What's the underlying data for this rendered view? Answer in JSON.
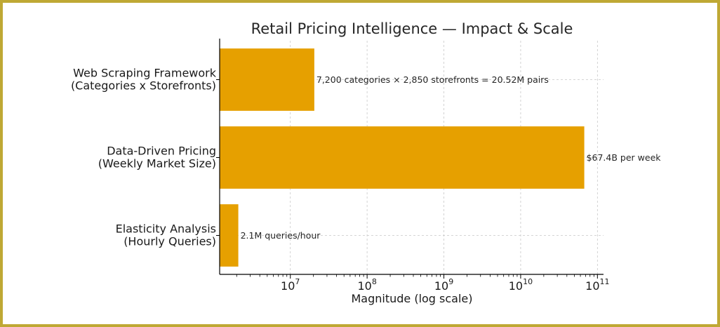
{
  "chart_data": {
    "type": "bar",
    "orientation": "horizontal",
    "title": "Retail Pricing Intelligence — Impact & Scale",
    "xlabel": "Magnitude (log scale)",
    "ylabel": "",
    "xscale": "log",
    "xlim": [
      1200000,
      120000000000
    ],
    "grid": true,
    "bar_color": "#e6a000",
    "categories": [
      [
        "Web Scraping Framework",
        "(Categories x Storefronts)"
      ],
      [
        "Data-Driven Pricing",
        "(Weekly Market Size)"
      ],
      [
        "Elasticity Analysis",
        "(Hourly Queries)"
      ]
    ],
    "values": [
      20520000,
      67400000000,
      2100000
    ],
    "annotations": [
      "7,200 categories × 2,850 storefronts = 20.52M pairs",
      "$67.4B per week",
      "2.1M queries/hour"
    ],
    "xticks": [
      {
        "base": "10",
        "exp": "7",
        "value": 10000000
      },
      {
        "base": "10",
        "exp": "8",
        "value": 100000000
      },
      {
        "base": "10",
        "exp": "9",
        "value": 1000000000
      },
      {
        "base": "10",
        "exp": "10",
        "value": 10000000000
      },
      {
        "base": "10",
        "exp": "11",
        "value": 100000000000
      }
    ]
  }
}
